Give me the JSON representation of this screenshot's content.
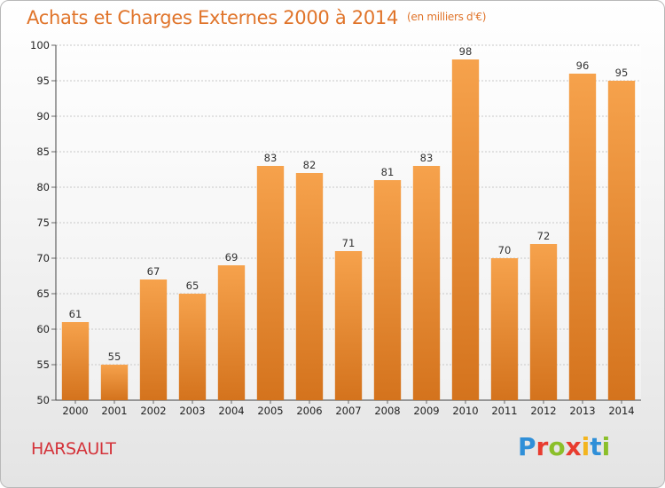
{
  "chart_data": {
    "type": "bar",
    "title": "Achats et Charges Externes 2000 à 2014",
    "subtitle": "(en milliers d'€)",
    "categories": [
      "2000",
      "2001",
      "2002",
      "2003",
      "2004",
      "2005",
      "2006",
      "2007",
      "2008",
      "2009",
      "2010",
      "2011",
      "2012",
      "2013",
      "2014"
    ],
    "values": [
      61,
      55,
      67,
      65,
      69,
      83,
      82,
      71,
      81,
      83,
      98,
      70,
      72,
      96,
      95
    ],
    "ylim": [
      50,
      100
    ],
    "yticks": [
      50,
      55,
      60,
      65,
      70,
      75,
      80,
      85,
      90,
      95,
      100
    ],
    "grid": "horizontal-dashed",
    "bar_color": "#f0943f",
    "xlabel": "",
    "ylabel": ""
  },
  "place_name": "HARSAULT",
  "logo": {
    "letters": [
      "P",
      "r",
      "o",
      "x",
      "i",
      "t",
      "i"
    ],
    "colors": [
      "#2f8fd8",
      "#e83c2f",
      "#8bbf2a",
      "#e83c2f",
      "#f3b51f",
      "#2f8fd8",
      "#8bbf2a"
    ]
  }
}
